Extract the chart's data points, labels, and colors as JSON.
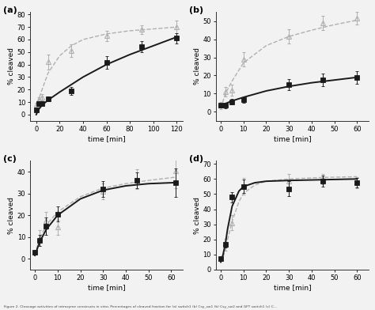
{
  "panels": [
    {
      "label": "(a)",
      "xlim": [
        -5,
        125
      ],
      "ylim": [
        -5,
        82
      ],
      "xticks": [
        0,
        20,
        40,
        60,
        80,
        100,
        120
      ],
      "yticks": [
        0,
        10,
        20,
        30,
        40,
        50,
        60,
        70,
        80
      ],
      "xlabel": "time [min]",
      "ylabel": "% cleaved",
      "black_x": [
        0,
        2,
        5,
        10,
        30,
        60,
        90,
        120
      ],
      "black_y": [
        3.5,
        8.5,
        9.0,
        12.5,
        19.0,
        41.5,
        54.5,
        61.0
      ],
      "black_yerr": [
        0.5,
        1.5,
        1.5,
        2.0,
        3.0,
        5.0,
        4.5,
        4.0
      ],
      "black_fit_x": [
        0,
        2,
        5,
        10,
        20,
        30,
        40,
        60,
        80,
        100,
        120
      ],
      "black_fit_y": [
        0,
        4.0,
        7.5,
        11.5,
        18.0,
        24.0,
        30.0,
        40.0,
        48.0,
        55.0,
        62.0
      ],
      "gray_x": [
        0,
        2,
        5,
        10,
        30,
        60,
        90,
        120
      ],
      "gray_y": [
        8.0,
        12.0,
        14.0,
        42.0,
        51.0,
        63.0,
        68.0,
        70.0
      ],
      "gray_yerr": [
        1.5,
        2.0,
        2.5,
        6.0,
        5.0,
        4.0,
        3.5,
        5.0
      ],
      "gray_fit_x": [
        0,
        2,
        5,
        10,
        20,
        30,
        40,
        60,
        80,
        100,
        120
      ],
      "gray_fit_y": [
        5.0,
        12.0,
        20.0,
        33.0,
        47.0,
        55.0,
        60.0,
        64.5,
        67.0,
        68.5,
        70.0
      ]
    },
    {
      "label": "(b)",
      "xlim": [
        -2,
        65
      ],
      "ylim": [
        -5,
        55
      ],
      "xticks": [
        0,
        10,
        20,
        30,
        40,
        50,
        60
      ],
      "yticks": [
        0,
        10,
        20,
        30,
        40,
        50
      ],
      "xlabel": "time [min]",
      "ylabel": "% cleaved",
      "black_x": [
        0,
        2,
        5,
        10,
        30,
        45,
        60
      ],
      "black_y": [
        3.5,
        3.5,
        5.5,
        6.5,
        15.0,
        17.5,
        19.0
      ],
      "black_yerr": [
        1.0,
        1.5,
        1.5,
        1.5,
        3.0,
        3.5,
        3.5
      ],
      "black_fit_x": [
        0,
        2,
        5,
        10,
        20,
        30,
        40,
        50,
        60
      ],
      "black_fit_y": [
        2.5,
        4.5,
        6.0,
        8.0,
        11.5,
        14.0,
        16.0,
        17.5,
        19.0
      ],
      "gray_x": [
        0,
        2,
        5,
        10,
        30,
        45,
        60
      ],
      "gray_y": [
        3.5,
        11.0,
        12.0,
        29.0,
        41.5,
        49.0,
        51.5
      ],
      "gray_yerr": [
        2.0,
        2.5,
        3.0,
        4.0,
        4.0,
        4.0,
        3.5
      ],
      "gray_fit_x": [
        0,
        2,
        5,
        10,
        20,
        30,
        40,
        50,
        60
      ],
      "gray_fit_y": [
        2.0,
        10.0,
        17.0,
        27.0,
        36.5,
        41.5,
        45.0,
        48.0,
        50.5
      ]
    },
    {
      "label": "(c)",
      "xlim": [
        -2,
        65
      ],
      "ylim": [
        -5,
        45
      ],
      "xticks": [
        0,
        10,
        20,
        30,
        40,
        50,
        60
      ],
      "yticks": [
        0,
        10,
        20,
        30,
        40
      ],
      "xlabel": "time [min]",
      "ylabel": "% cleaved",
      "black_x": [
        0,
        2,
        5,
        10,
        30,
        45,
        62
      ],
      "black_y": [
        3.0,
        8.5,
        15.0,
        20.5,
        32.0,
        36.0,
        35.0
      ],
      "black_yerr": [
        0.5,
        2.5,
        4.0,
        3.5,
        3.5,
        3.5,
        6.5
      ],
      "black_fit_x": [
        0,
        2,
        5,
        10,
        20,
        30,
        40,
        50,
        62
      ],
      "black_fit_y": [
        1.5,
        7.5,
        13.5,
        20.0,
        27.5,
        31.5,
        33.5,
        34.5,
        35.0
      ],
      "gray_x": [
        0,
        2,
        5,
        10,
        30,
        45,
        62
      ],
      "gray_y": [
        3.0,
        9.5,
        17.5,
        14.5,
        31.0,
        36.5,
        40.5
      ],
      "gray_yerr": [
        0.5,
        3.5,
        4.0,
        3.5,
        3.5,
        4.5,
        8.0
      ],
      "gray_fit_x": [
        0,
        2,
        5,
        10,
        20,
        30,
        40,
        50,
        62
      ],
      "gray_fit_y": [
        2.0,
        9.0,
        15.5,
        21.5,
        28.5,
        32.5,
        34.5,
        36.0,
        37.5
      ]
    },
    {
      "label": "(d)",
      "xlim": [
        -2,
        65
      ],
      "ylim": [
        0,
        72
      ],
      "xticks": [
        0,
        10,
        20,
        30,
        40,
        50,
        60
      ],
      "yticks": [
        0,
        10,
        20,
        30,
        40,
        50,
        60,
        70
      ],
      "xlabel": "time [min]",
      "ylabel": "% cleaved",
      "black_x": [
        0,
        2,
        5,
        10,
        30,
        45,
        60
      ],
      "black_y": [
        7.5,
        16.5,
        48.0,
        55.0,
        53.5,
        58.5,
        57.5
      ],
      "black_yerr": [
        0.5,
        2.0,
        3.5,
        4.5,
        5.0,
        3.5,
        3.0
      ],
      "black_fit_x": [
        0,
        1,
        2,
        3,
        5,
        8,
        10,
        15,
        20,
        30,
        45,
        60
      ],
      "black_fit_y": [
        5.0,
        10.0,
        17.0,
        27.0,
        42.0,
        52.0,
        55.0,
        57.5,
        58.5,
        59.0,
        59.5,
        60.0
      ],
      "gray_x": [
        0,
        2,
        5,
        10,
        30,
        45,
        60
      ],
      "gray_y": [
        7.5,
        16.5,
        31.0,
        55.0,
        58.5,
        60.0,
        57.5
      ],
      "gray_yerr": [
        0.5,
        4.0,
        5.0,
        5.5,
        5.0,
        3.5,
        3.5
      ],
      "gray_fit_x": [
        0,
        1,
        2,
        3,
        5,
        8,
        10,
        15,
        20,
        30,
        45,
        60
      ],
      "gray_fit_y": [
        5.0,
        8.0,
        13.0,
        20.0,
        32.0,
        45.0,
        50.5,
        56.0,
        58.5,
        60.0,
        61.0,
        61.5
      ]
    }
  ],
  "black_color": "#1a1a1a",
  "gray_color": "#b0b0b0",
  "figure_bg": "#f2f2f2",
  "axes_bg": "#f2f2f2",
  "caption": "Figure 2. Cleavage activities of retrozyme constructs in vitro. Percentages of cleaved fraction for (a) switch1 (b) Csy_sw1 (b) Csy_sw2 and GFT switch1 (c) C..."
}
